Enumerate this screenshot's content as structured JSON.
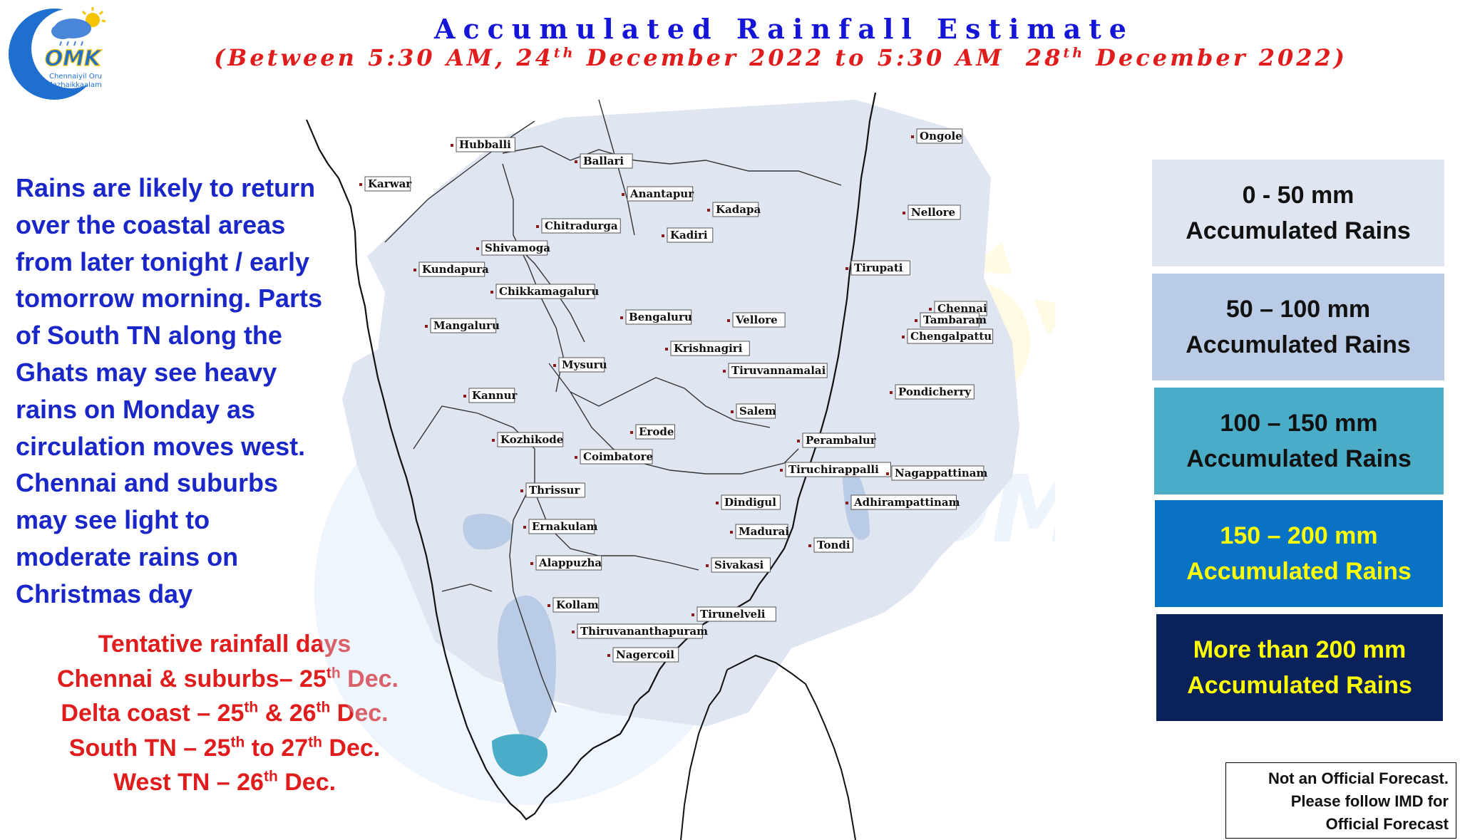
{
  "logo": {
    "letters": "OMK",
    "caption_line1": "Chennaiyil Oru",
    "caption_line2": "Mazhaikkaalam"
  },
  "title": "Accumulated Rainfall Estimate",
  "subtitle": {
    "prefix": "(Between 5:30 AM, 24",
    "sup1": "th",
    "middle": " December 2022 to 5:30 AM  28",
    "sup2": "th",
    "suffix": " December 2022)"
  },
  "message_lines": [
    "Rains are likely to return",
    "over the coastal areas",
    "from later tonight / early",
    "tomorrow morning. Parts",
    "of South TN along the",
    "Ghats may see heavy",
    "rains on Monday as",
    "circulation moves west.",
    "Chennai and suburbs",
    "may see light to",
    "moderate rains on",
    "Christmas day"
  ],
  "rainfall_days": {
    "heading": "Tentative rainfall days",
    "lines": [
      {
        "pre": "Chennai & suburbs– 25",
        "sup": "th",
        "post": " Dec.",
        "sup2": "",
        "post2": ""
      },
      {
        "pre": "Delta coast – 25",
        "sup": "th",
        "post": " & 26",
        "sup2": "th",
        "post2": " Dec."
      },
      {
        "pre": "South TN – 25",
        "sup": "th",
        "post": " to 27",
        "sup2": "th",
        "post2": " Dec."
      },
      {
        "pre": "West TN – 26",
        "sup": "th",
        "post": " Dec.",
        "sup2": "",
        "post2": ""
      }
    ]
  },
  "legend": [
    {
      "line1": "0 - 50  mm",
      "line2": "Accumulated Rains",
      "bg": "#dfe6f2",
      "fg": "#111111"
    },
    {
      "line1": "50 – 100 mm",
      "line2": "Accumulated Rains",
      "bg": "#b9cbe5",
      "fg": "#111111"
    },
    {
      "line1": "100 – 150  mm",
      "line2": "Accumulated Rains",
      "bg": "#4aacc6",
      "fg": "#111111"
    },
    {
      "line1": "150  – 200  mm",
      "line2": "Accumulated Rains",
      "bg": "#0873c5",
      "fg": "#ffff00"
    },
    {
      "line1": "More than 200 mm",
      "line2": "Accumulated Rains",
      "bg": "#0b2159",
      "fg": "#ffff00"
    }
  ],
  "disclaimer": [
    "Not an Official Forecast.",
    "Please follow IMD for",
    "Official Forecast"
  ],
  "cities": [
    "Ongole",
    "Hubballi",
    "Ballari",
    "Karwar",
    "Anantapur",
    "Kadapa",
    "Nellore",
    "Chitradurga",
    "Kadiri",
    "Shivamoga",
    "Kundapura",
    "Tirupati",
    "Chikkamagaluru",
    "Chennai",
    "Bengaluru",
    "Vellore",
    "Tambaram",
    "Mangaluru",
    "Chengalpattu",
    "Krishnagiri",
    "Mysuru",
    "Tiruvannamalai",
    "Pondicherry",
    "Kannur",
    "Salem",
    "Erode",
    "Kozhikode",
    "Perambalur",
    "Coimbatore",
    "Tiruchirappalli",
    "Nagappattinam",
    "Thrissur",
    "Dindigul",
    "Adhirampattinam",
    "Ernakulam",
    "Madurai",
    "Tondi",
    "Alappuzha",
    "Sivakasi",
    "Kollam",
    "Tirunelveli",
    "Thiruvananthapuram",
    "Nagercoil"
  ],
  "colors": {
    "title": "#1515d8",
    "subtitle": "#e01c1c",
    "message": "#1a27c8",
    "days": "#e01c1c",
    "zone_0_50": "#dfe6f2",
    "zone_50_100": "#b9cbe5",
    "zone_100_150": "#4aacc6"
  }
}
